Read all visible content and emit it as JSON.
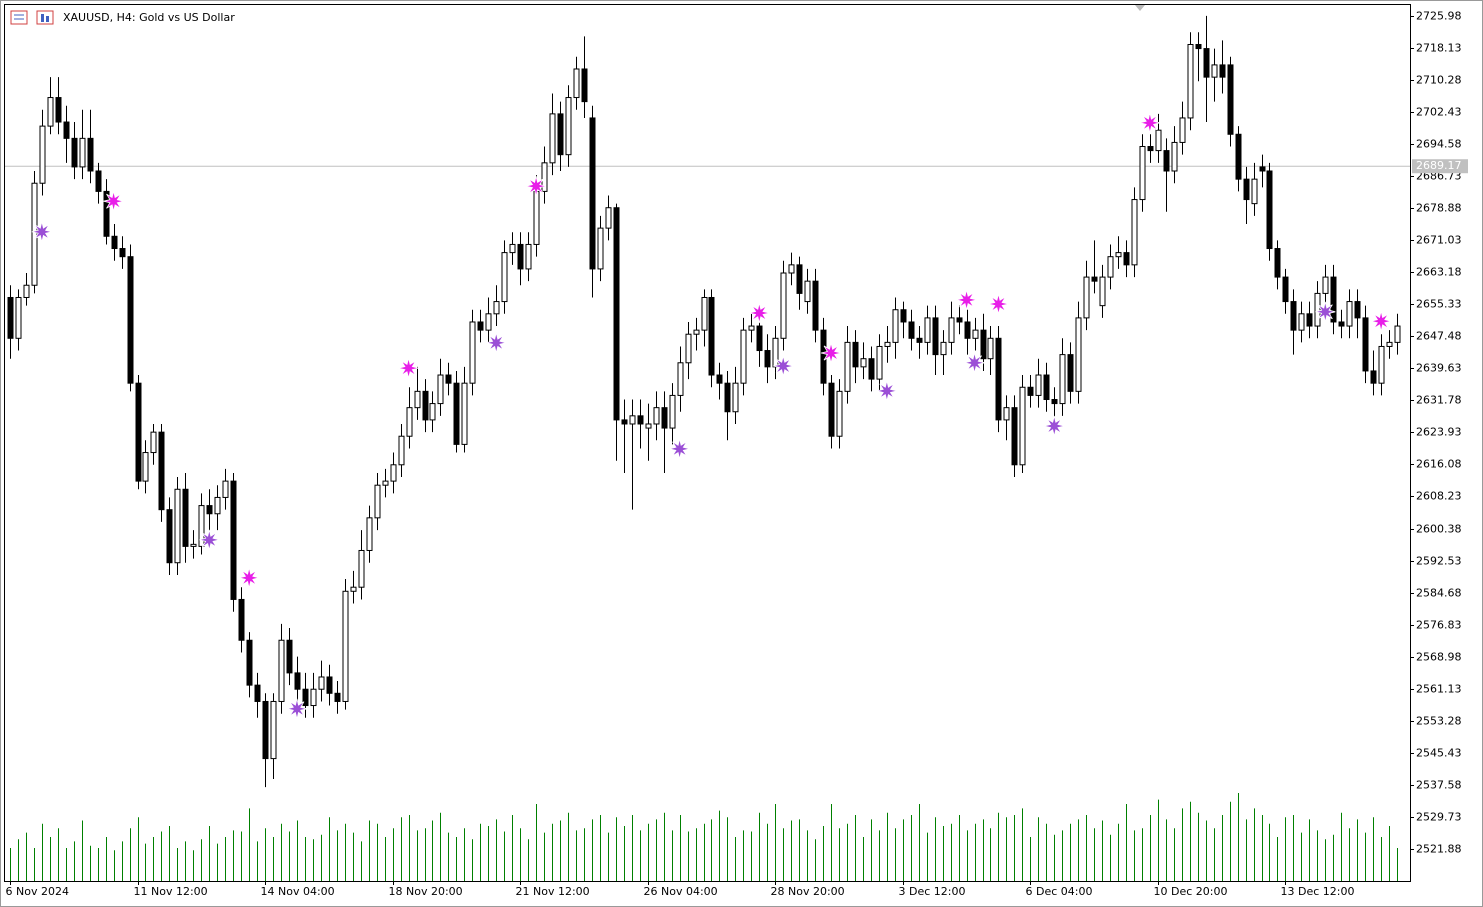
{
  "chart_data": {
    "type": "candlestick",
    "title": "XAUUSD, H4:  Gold vs US Dollar",
    "bull_color": "#ffffff",
    "bear_color": "#000000",
    "volume_color": "#008000",
    "open": [
      2657,
      2647,
      2657,
      2660,
      2685,
      2699,
      2706,
      2700,
      2696,
      2689,
      2696,
      2688,
      2683,
      2672,
      2669,
      2667,
      2636,
      2612,
      2619,
      2624,
      2605,
      2592,
      2610,
      2596,
      2596,
      2606,
      2604,
      2608,
      2612,
      2583,
      2573,
      2562,
      2558,
      2544,
      2558,
      2573,
      2565,
      2561,
      2557,
      2561,
      2564,
      2560,
      2558,
      2585,
      2586,
      2595,
      2603,
      2611,
      2612,
      2616,
      2623,
      2630,
      2634,
      2627,
      2631,
      2638,
      2636,
      2621,
      2636,
      2651,
      2649,
      2653,
      2656,
      2668,
      2670,
      2664,
      2670,
      2683,
      2690,
      2702,
      2692,
      2706,
      2713,
      2701,
      2664,
      2674,
      2679,
      2627,
      2626,
      2628,
      2625,
      2626,
      2630,
      2625,
      2633,
      2641,
      2648,
      2649,
      2657,
      2638,
      2636,
      2629,
      2636,
      2649,
      2650,
      2644,
      2640,
      2647,
      2663,
      2665,
      2656,
      2661,
      2649,
      2636,
      2623,
      2634,
      2646,
      2640,
      2642,
      2637,
      2645,
      2646,
      2654,
      2651,
      2647,
      2646,
      2652,
      2643,
      2646,
      2652,
      2651,
      2647,
      2649,
      2642,
      2647,
      2627,
      2630,
      2616,
      2635,
      2633,
      2638,
      2632,
      2631,
      2643,
      2634,
      2652,
      2662,
      2655,
      2662,
      2667,
      2668,
      2665,
      2681,
      2694,
      2693,
      2693,
      2688,
      2695,
      2701,
      2719,
      2718,
      2711,
      2714,
      2714,
      2697,
      2686,
      2680,
      2689,
      2688,
      2669,
      2662,
      2656,
      2649,
      2653,
      2650,
      2658,
      2662,
      2651,
      2650,
      2656,
      2652,
      2639,
      2636,
      2645,
      2646
    ],
    "high": [
      2660,
      2659,
      2663,
      2688,
      2703,
      2711,
      2711,
      2704,
      2700,
      2703,
      2703,
      2690,
      2686,
      2675,
      2672,
      2670,
      2638,
      2622,
      2626,
      2626,
      2608,
      2613,
      2614,
      2600,
      2609,
      2610,
      2611,
      2615,
      2614,
      2586,
      2575,
      2565,
      2560,
      2560,
      2577,
      2576,
      2569,
      2565,
      2565,
      2568,
      2567,
      2563,
      2588,
      2590,
      2600,
      2606,
      2614,
      2615,
      2619,
      2626,
      2635,
      2640,
      2637,
      2634,
      2642,
      2641,
      2639,
      2640,
      2654,
      2654,
      2657,
      2660,
      2671,
      2673,
      2673,
      2673,
      2687,
      2694,
      2707,
      2705,
      2709,
      2716,
      2721,
      2704,
      2677,
      2682,
      2680,
      2632,
      2632,
      2632,
      2631,
      2634,
      2634,
      2636,
      2645,
      2651,
      2652,
      2659,
      2659,
      2641,
      2639,
      2640,
      2652,
      2653,
      2653,
      2648,
      2650,
      2666,
      2668,
      2667,
      2664,
      2664,
      2652,
      2638,
      2637,
      2650,
      2649,
      2646,
      2645,
      2648,
      2650,
      2657,
      2656,
      2654,
      2650,
      2655,
      2655,
      2649,
      2656,
      2655,
      2654,
      2652,
      2653,
      2650,
      2650,
      2633,
      2633,
      2638,
      2638,
      2642,
      2641,
      2635,
      2647,
      2646,
      2656,
      2666,
      2671,
      2665,
      2670,
      2672,
      2671,
      2684,
      2697,
      2697,
      2702,
      2696,
      2699,
      2705,
      2722,
      2722,
      2726,
      2718,
      2720,
      2716,
      2699,
      2689,
      2690,
      2692,
      2690,
      2671,
      2664,
      2659,
      2656,
      2656,
      2661,
      2665,
      2665,
      2654,
      2659,
      2659,
      2655,
      2644,
      2648,
      2649,
      2653
    ],
    "low": [
      2642,
      2644,
      2655,
      2658,
      2682,
      2697,
      2697,
      2690,
      2686,
      2686,
      2685,
      2680,
      2670,
      2666,
      2664,
      2634,
      2610,
      2609,
      2616,
      2602,
      2589,
      2589,
      2592,
      2593,
      2594,
      2598,
      2600,
      2605,
      2580,
      2570,
      2559,
      2554,
      2537,
      2539,
      2555,
      2562,
      2557,
      2554,
      2554,
      2558,
      2557,
      2555,
      2556,
      2582,
      2583,
      2592,
      2600,
      2608,
      2609,
      2613,
      2620,
      2627,
      2624,
      2624,
      2628,
      2633,
      2619,
      2619,
      2633,
      2646,
      2646,
      2650,
      2653,
      2665,
      2660,
      2661,
      2667,
      2680,
      2687,
      2688,
      2689,
      2703,
      2701,
      2657,
      2661,
      2671,
      2617,
      2614,
      2605,
      2620,
      2617,
      2622,
      2614,
      2621,
      2629,
      2637,
      2644,
      2645,
      2635,
      2632,
      2622,
      2626,
      2633,
      2646,
      2640,
      2636,
      2637,
      2644,
      2660,
      2654,
      2653,
      2646,
      2633,
      2620,
      2620,
      2631,
      2636,
      2637,
      2634,
      2634,
      2641,
      2642,
      2647,
      2644,
      2642,
      2643,
      2638,
      2638,
      2643,
      2648,
      2643,
      2644,
      2639,
      2638,
      2624,
      2622,
      2613,
      2614,
      2630,
      2630,
      2629,
      2624,
      2628,
      2631,
      2631,
      2649,
      2658,
      2652,
      2659,
      2664,
      2662,
      2662,
      2678,
      2690,
      2690,
      2678,
      2685,
      2692,
      2698,
      2710,
      2700,
      2705,
      2707,
      2694,
      2683,
      2675,
      2677,
      2684,
      2666,
      2659,
      2653,
      2643,
      2646,
      2647,
      2647,
      2654,
      2648,
      2647,
      2647,
      2647,
      2636,
      2633,
      2633,
      2642,
      2643
    ],
    "close": [
      2647,
      2657,
      2660,
      2685,
      2699,
      2706,
      2700,
      2696,
      2689,
      2696,
      2688,
      2683,
      2672,
      2669,
      2667,
      2636,
      2612,
      2619,
      2624,
      2605,
      2592,
      2610,
      2596,
      2596.5,
      2606,
      2604,
      2608,
      2612,
      2583,
      2573,
      2562,
      2558,
      2544,
      2558,
      2573,
      2565,
      2561,
      2557,
      2561,
      2564,
      2560,
      2558,
      2585,
      2586,
      2595,
      2603,
      2611,
      2612,
      2616,
      2623,
      2630,
      2634,
      2627,
      2631,
      2638,
      2636,
      2621,
      2636,
      2651,
      2649,
      2653,
      2656,
      2668,
      2670,
      2664,
      2670,
      2683,
      2690,
      2702,
      2692,
      2706,
      2713,
      2705,
      2664,
      2674,
      2679,
      2627,
      2626,
      2628,
      2626,
      2626,
      2630,
      2625,
      2633,
      2641,
      2648,
      2649,
      2657,
      2638,
      2636,
      2629,
      2636,
      2649,
      2650,
      2644,
      2640,
      2647,
      2663,
      2665,
      2658,
      2661,
      2649,
      2636,
      2623,
      2634,
      2646,
      2640,
      2642,
      2637,
      2645,
      2646,
      2654,
      2651,
      2647,
      2646,
      2652,
      2643,
      2646,
      2652,
      2651,
      2647,
      2649,
      2642,
      2647,
      2627,
      2630,
      2616,
      2635,
      2633,
      2638,
      2632,
      2631,
      2643,
      2634,
      2652,
      2662,
      2661,
      2662,
      2667,
      2668,
      2665,
      2681,
      2694,
      2693,
      2698,
      2688,
      2695,
      2701,
      2719,
      2718,
      2711,
      2714,
      2711,
      2697,
      2686,
      2681,
      2686,
      2688,
      2669,
      2662,
      2656,
      2649,
      2653,
      2650,
      2658,
      2662,
      2651,
      2650,
      2656,
      2652,
      2639,
      2636,
      2645,
      2646,
      2650
    ],
    "volume": [
      30,
      38,
      44,
      30,
      52,
      40,
      48,
      30,
      36,
      55,
      32,
      30,
      40,
      28,
      36,
      48,
      58,
      34,
      40,
      45,
      50,
      30,
      36,
      28,
      38,
      50,
      34,
      40,
      46,
      45,
      66,
      36,
      48,
      40,
      52,
      45,
      55,
      40,
      38,
      42,
      58,
      46,
      52,
      44,
      36,
      55,
      52,
      40,
      48,
      58,
      60,
      46,
      48,
      55,
      62,
      44,
      40,
      48,
      38,
      52,
      50,
      56,
      45,
      60,
      48,
      38,
      70,
      44,
      52,
      55,
      62,
      46,
      48,
      56,
      60,
      44,
      58,
      50,
      60,
      46,
      52,
      56,
      62,
      46,
      60,
      45,
      48,
      52,
      56,
      64,
      58,
      40,
      46,
      45,
      62,
      52,
      70,
      48,
      55,
      56,
      46,
      38,
      50,
      70,
      48,
      52,
      60,
      40,
      56,
      46,
      62,
      48,
      56,
      60,
      70,
      44,
      58,
      50,
      52,
      60,
      46,
      52,
      56,
      48,
      62,
      58,
      60,
      66,
      40,
      58,
      52,
      42,
      46,
      52,
      56,
      60,
      48,
      55,
      42,
      52,
      70,
      46,
      48,
      60,
      74,
      56,
      48,
      66,
      72,
      62,
      55,
      48,
      60,
      72,
      80,
      56,
      66,
      60,
      52,
      40,
      58,
      60,
      44,
      56,
      46,
      38,
      42,
      62,
      48,
      56,
      44,
      58,
      40,
      50,
      30
    ],
    "xlim": [
      -0.625,
      175
    ],
    "xticks": [
      {
        "value": 0,
        "label": "6 Nov 2024"
      },
      {
        "value": 16,
        "label": "11 Nov 12:00"
      },
      {
        "value": 32,
        "label": "14 Nov 04:00"
      },
      {
        "value": 48,
        "label": "18 Nov 20:00"
      },
      {
        "value": 64,
        "label": "21 Nov 12:00"
      },
      {
        "value": 80,
        "label": "26 Nov 04:00"
      },
      {
        "value": 96,
        "label": "28 Nov 20:00"
      },
      {
        "value": 112,
        "label": "3 Dec 12:00"
      },
      {
        "value": 128,
        "label": "6 Dec 04:00"
      },
      {
        "value": 144,
        "label": "10 Dec 20:00"
      },
      {
        "value": 160,
        "label": "13 Dec 12:00"
      }
    ],
    "ylim": [
      2514.0,
      2728.68
    ],
    "yticks": [
      2725.98,
      2718.13,
      2710.28,
      2702.43,
      2694.58,
      2686.73,
      2678.88,
      2671.03,
      2663.18,
      2655.33,
      2647.48,
      2639.63,
      2631.78,
      2623.93,
      2616.08,
      2608.23,
      2600.38,
      2592.53,
      2584.68,
      2576.83,
      2568.98,
      2561.13,
      2553.28,
      2545.43,
      2537.58,
      2529.73,
      2521.88
    ],
    "current_price": 2689.17,
    "signals": [
      {
        "color": "#9b4fd6",
        "points": [
          {
            "x": 4,
            "price": 2673.1
          },
          {
            "x": 25,
            "price": 2597.6
          },
          {
            "x": 36,
            "price": 2556.2
          },
          {
            "x": 61,
            "price": 2645.9
          },
          {
            "x": 84,
            "price": 2619.9
          },
          {
            "x": 97,
            "price": 2640.2
          },
          {
            "x": 110,
            "price": 2634.1
          },
          {
            "x": 121,
            "price": 2641.0
          },
          {
            "x": 131,
            "price": 2625.5
          },
          {
            "x": 165,
            "price": 2653.5
          }
        ]
      },
      {
        "color": "#e81ee8",
        "points": [
          {
            "x": 13,
            "price": 2680.6
          },
          {
            "x": 30,
            "price": 2588.3
          },
          {
            "x": 50,
            "price": 2639.7
          },
          {
            "x": 66,
            "price": 2684.3
          },
          {
            "x": 94,
            "price": 2653.2
          },
          {
            "x": 103,
            "price": 2643.4
          },
          {
            "x": 120,
            "price": 2656.4
          },
          {
            "x": 124,
            "price": 2655.4
          },
          {
            "x": 143,
            "price": 2699.8
          },
          {
            "x": 172,
            "price": 2651.2
          }
        ]
      }
    ]
  }
}
